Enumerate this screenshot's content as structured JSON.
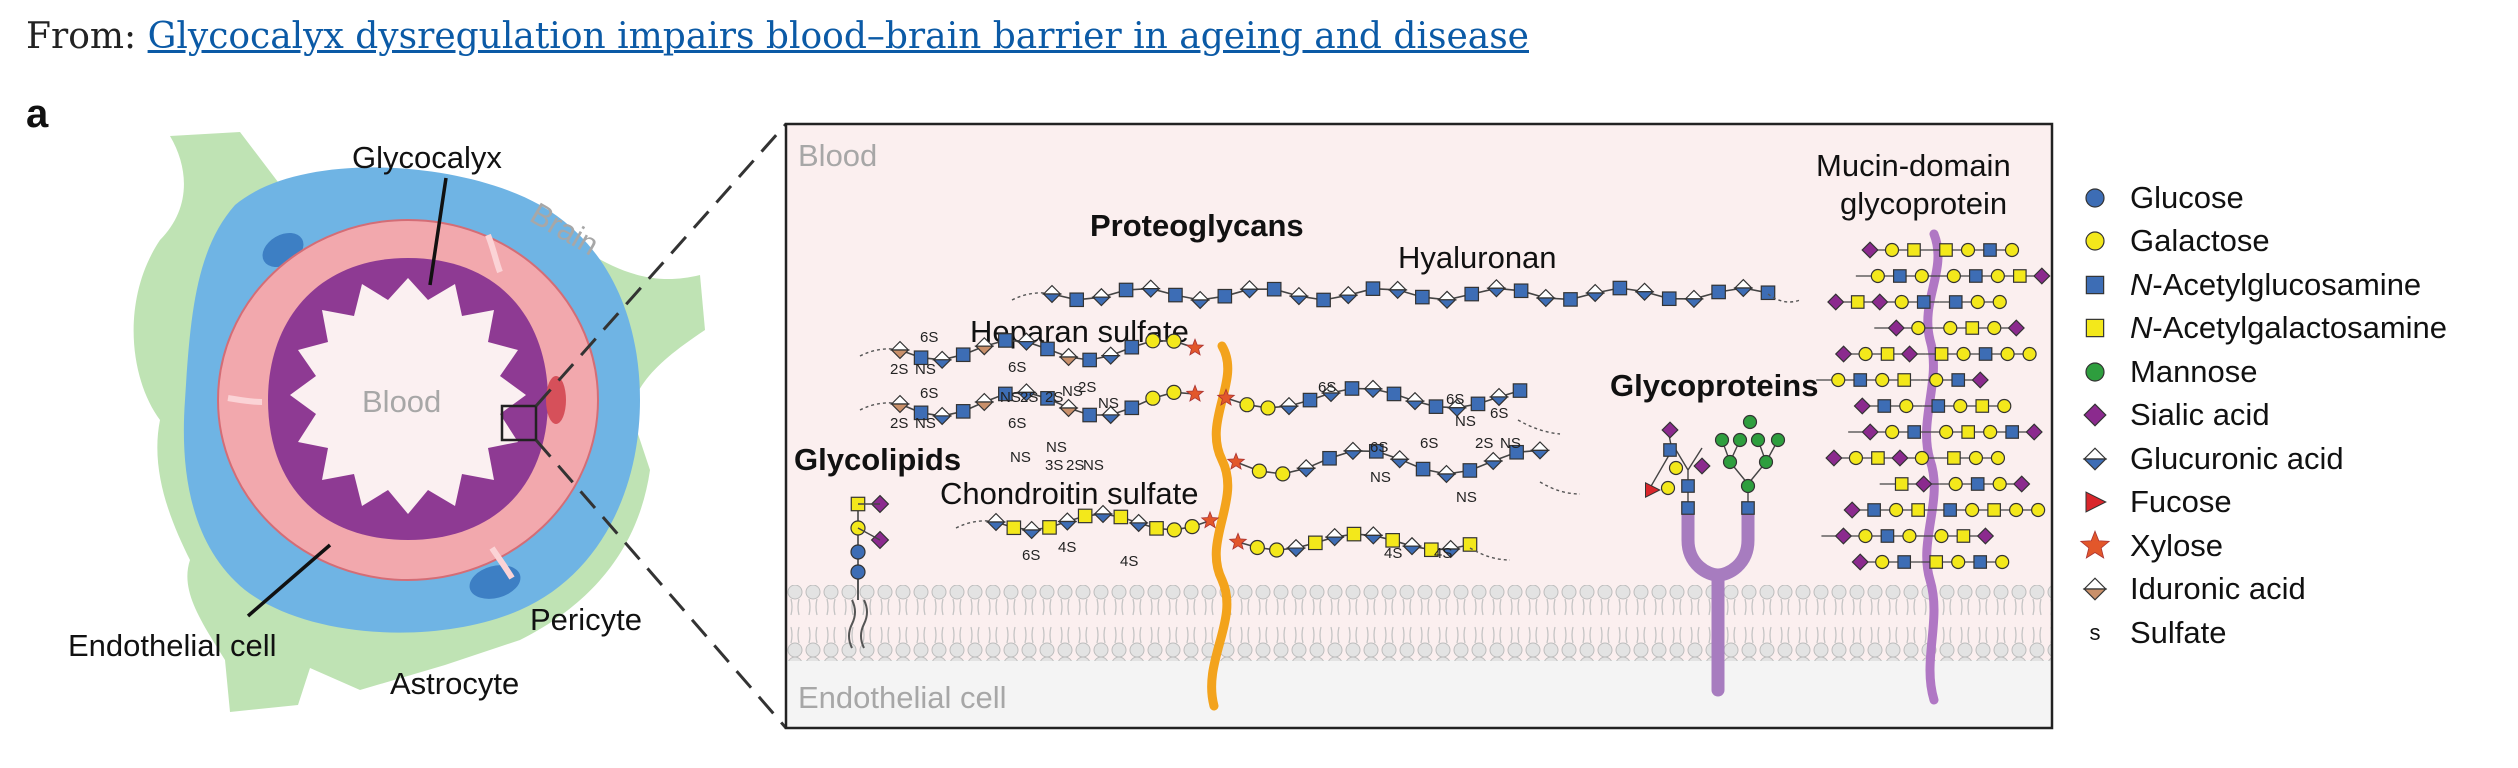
{
  "header": {
    "from_prefix": "From:",
    "article_title": "Glycocalyx dysregulation impairs blood–brain barrier in ageing and disease"
  },
  "panel_letter": "a",
  "left_schematic": {
    "labels": {
      "glycocalyx": "Glycocalyx",
      "brain": "Brain",
      "blood": "Blood",
      "endothelial_cell": "Endothelial cell",
      "pericyte": "Pericyte",
      "astrocyte": "Astrocyte"
    }
  },
  "detail_panel": {
    "region_top": "Blood",
    "region_bottom": "Endothelial cell",
    "groups": {
      "proteoglycans": "Proteoglycans",
      "glycolipids": "Glycolipids",
      "glycoproteins": "Glycoproteins",
      "mucin": [
        "Mucin-domain",
        "glycoprotein"
      ]
    },
    "chains": {
      "hyaluronan": "Hyaluronan",
      "heparan_sulfate": "Heparan sulfate",
      "chondroitin_sulfate": "Chondroitin sulfate"
    },
    "sulfation_marks": {
      "six_s": "6S",
      "two_s": "2S",
      "ns": "NS",
      "three_s": "3S",
      "four_s": "4S"
    }
  },
  "legend": [
    {
      "symbol": "circle",
      "color": "#3d6db5",
      "label_prefix": "",
      "label_italic": "",
      "label_rest": "Glucose"
    },
    {
      "symbol": "circle",
      "color": "#f3e81b",
      "label_prefix": "",
      "label_italic": "",
      "label_rest": "Galactose"
    },
    {
      "symbol": "square",
      "color": "#3d6db5",
      "label_prefix": "",
      "label_italic": "N",
      "label_rest": "-Acetylglucosamine"
    },
    {
      "symbol": "square",
      "color": "#f3e81b",
      "label_prefix": "",
      "label_italic": "N",
      "label_rest": "-Acetylgalactosamine"
    },
    {
      "symbol": "circle",
      "color": "#2e9e3e",
      "label_prefix": "",
      "label_italic": "",
      "label_rest": "Mannose"
    },
    {
      "symbol": "diamond",
      "color": "#8b2a8e",
      "label_prefix": "",
      "label_italic": "",
      "label_rest": "Sialic acid"
    },
    {
      "symbol": "half-diamond",
      "color": "#3d6db5",
      "label_prefix": "",
      "label_italic": "",
      "label_rest": "Glucuronic acid"
    },
    {
      "symbol": "triangle",
      "color": "#d9262b",
      "label_prefix": "",
      "label_italic": "",
      "label_rest": "Fucose"
    },
    {
      "symbol": "star",
      "color": "#e2572b",
      "label_prefix": "",
      "label_italic": "",
      "label_rest": "Xylose"
    },
    {
      "symbol": "half-diamond",
      "color": "#c9906a",
      "label_prefix": "",
      "label_italic": "",
      "label_rest": "Iduronic acid"
    },
    {
      "symbol": "text",
      "color": "#111111",
      "glyph": "s",
      "label_prefix": "",
      "label_italic": "",
      "label_rest": "Sulfate"
    }
  ],
  "colors": {
    "brain": "#bfe3b4",
    "pericyte": "#6fb4e4",
    "endothelium": "#f2a8ad",
    "glycocalyx": "#8e3a93",
    "blood": "#fbf0f1",
    "panel_bg": "#fbefef",
    "membrane": "#d9d9d9",
    "proteoglycan_core": "#f3a31c",
    "glycoprotein_core": "#a77cbf"
  }
}
